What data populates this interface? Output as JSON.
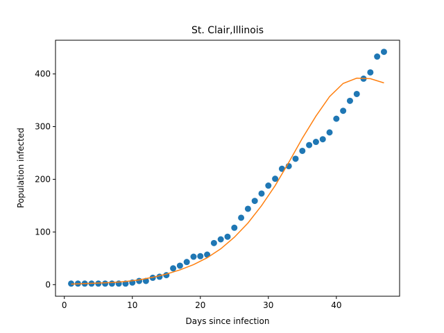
{
  "chart_data": {
    "type": "scatter",
    "title": "St. Clair,Illinois",
    "xlabel": "Days since infection",
    "ylabel": "Population infected",
    "xlim": [
      -1.3,
      49.3
    ],
    "ylim": [
      -22,
      464
    ],
    "xticks": [
      0,
      10,
      20,
      30,
      40
    ],
    "yticks": [
      0,
      100,
      200,
      300,
      400
    ],
    "grid": false,
    "series": [
      {
        "kind": "scatter",
        "color": "#1f77b4",
        "x": [
          1,
          2,
          3,
          4,
          5,
          6,
          7,
          8,
          9,
          10,
          11,
          12,
          13,
          14,
          15,
          16,
          17,
          18,
          19,
          20,
          21,
          22,
          23,
          24,
          25,
          26,
          27,
          28,
          29,
          30,
          31,
          32,
          33,
          34,
          35,
          36,
          37,
          38,
          39,
          40,
          41,
          42,
          43,
          44,
          45,
          46,
          47
        ],
        "y": [
          2,
          2,
          2,
          2,
          2,
          2,
          2,
          2,
          2,
          4,
          7,
          7,
          13,
          15,
          18,
          31,
          36,
          43,
          53,
          54,
          57,
          79,
          86,
          91,
          108,
          127,
          144,
          159,
          173,
          188,
          201,
          220,
          225,
          239,
          254,
          265,
          271,
          276,
          289,
          315,
          330,
          349,
          362,
          391,
          403,
          433,
          442
        ]
      },
      {
        "kind": "line",
        "color": "#ff7f0e",
        "x": [
          1,
          3,
          5,
          7,
          9,
          11,
          13,
          15,
          17,
          19,
          21,
          23,
          25,
          27,
          29,
          31,
          33,
          35,
          37,
          39,
          41,
          43,
          45,
          47
        ],
        "y": [
          1,
          2,
          3,
          4,
          6,
          9,
          14,
          20,
          28,
          38,
          51,
          68,
          90,
          117,
          150,
          188,
          232,
          278,
          320,
          357,
          382,
          392,
          391,
          383
        ]
      }
    ]
  }
}
